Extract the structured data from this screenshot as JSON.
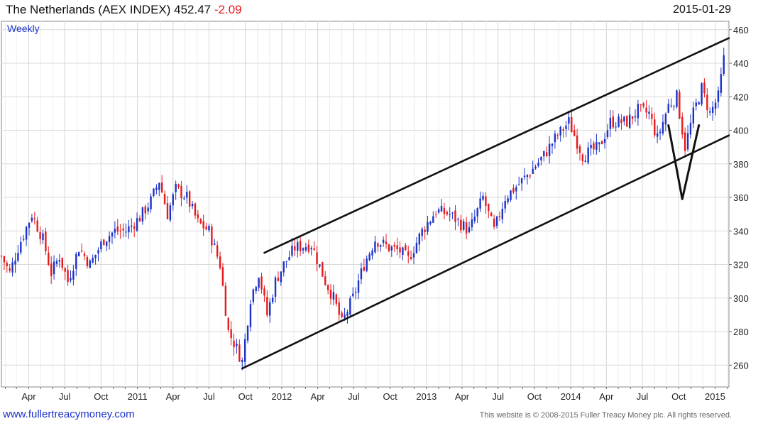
{
  "header": {
    "title": "The Netherlands (AEX INDEX) 452.47",
    "change": "-2.09",
    "date": "2015-01-29"
  },
  "footer": {
    "site": "www.fullertreacymoney.com",
    "copyright": "This website is © 2008-2015 Fuller Treacy Money plc. All rights reserved."
  },
  "colors": {
    "up": "#1c33c9",
    "down": "#e8191c",
    "grid": "#d9d9d9",
    "trend": "#111111"
  },
  "chart_data": {
    "type": "candlestick",
    "interval_label": "Weekly",
    "y_ticks": [
      260,
      280,
      300,
      320,
      340,
      360,
      380,
      400,
      420,
      440,
      460
    ],
    "ylim": [
      247,
      465
    ],
    "x_ticks": [
      "Apr",
      "Jul",
      "Oct",
      "2011",
      "Apr",
      "Jul",
      "Oct",
      "2012",
      "Apr",
      "Jul",
      "Oct",
      "2013",
      "Apr",
      "Jul",
      "Oct",
      "2014",
      "Apr",
      "Jul",
      "Oct",
      "2015"
    ],
    "xlim": [
      "2010-01-22",
      "2015-02-05"
    ],
    "close_path": [
      [
        "2010-01-22",
        325
      ],
      [
        "2010-02-12",
        315
      ],
      [
        "2010-03-05",
        330
      ],
      [
        "2010-04-09",
        350
      ],
      [
        "2010-05-07",
        335
      ],
      [
        "2010-05-28",
        315
      ],
      [
        "2010-06-18",
        325
      ],
      [
        "2010-07-09",
        310
      ],
      [
        "2010-08-06",
        330
      ],
      [
        "2010-09-03",
        320
      ],
      [
        "2010-10-08",
        335
      ],
      [
        "2010-11-05",
        340
      ],
      [
        "2010-12-03",
        340
      ],
      [
        "2011-01-07",
        348
      ],
      [
        "2011-02-04",
        358
      ],
      [
        "2011-02-25",
        370
      ],
      [
        "2011-03-18",
        350
      ],
      [
        "2011-04-08",
        365
      ],
      [
        "2011-05-06",
        360
      ],
      [
        "2011-06-03",
        345
      ],
      [
        "2011-07-01",
        340
      ],
      [
        "2011-07-29",
        320
      ],
      [
        "2011-08-19",
        280
      ],
      [
        "2011-09-09",
        270
      ],
      [
        "2011-09-23",
        262
      ],
      [
        "2011-10-14",
        300
      ],
      [
        "2011-11-04",
        315
      ],
      [
        "2011-11-25",
        290
      ],
      [
        "2011-12-16",
        310
      ],
      [
        "2012-01-06",
        320
      ],
      [
        "2012-02-03",
        330
      ],
      [
        "2012-03-16",
        332
      ],
      [
        "2012-04-20",
        310
      ],
      [
        "2012-05-11",
        300
      ],
      [
        "2012-06-01",
        285
      ],
      [
        "2012-06-29",
        300
      ],
      [
        "2012-07-27",
        320
      ],
      [
        "2012-08-24",
        335
      ],
      [
        "2012-09-28",
        330
      ],
      [
        "2012-10-26",
        328
      ],
      [
        "2012-11-16",
        323
      ],
      [
        "2012-12-21",
        340
      ],
      [
        "2013-01-25",
        352
      ],
      [
        "2013-03-01",
        350
      ],
      [
        "2013-04-19",
        340
      ],
      [
        "2013-05-24",
        360
      ],
      [
        "2013-06-21",
        340
      ],
      [
        "2013-07-19",
        360
      ],
      [
        "2013-08-23",
        368
      ],
      [
        "2013-09-20",
        375
      ],
      [
        "2013-10-25",
        385
      ],
      [
        "2013-11-22",
        395
      ],
      [
        "2013-12-27",
        405
      ],
      [
        "2014-01-31",
        385
      ],
      [
        "2014-03-14",
        390
      ],
      [
        "2014-04-11",
        405
      ],
      [
        "2014-05-23",
        405
      ],
      [
        "2014-06-20",
        412
      ],
      [
        "2014-07-18",
        410
      ],
      [
        "2014-08-08",
        395
      ],
      [
        "2014-09-05",
        415
      ],
      [
        "2014-09-26",
        420
      ],
      [
        "2014-10-17",
        390
      ],
      [
        "2014-11-07",
        410
      ],
      [
        "2014-11-28",
        425
      ],
      [
        "2014-12-19",
        410
      ],
      [
        "2015-01-09",
        420
      ],
      [
        "2015-01-29",
        452
      ]
    ],
    "trendlines": [
      [
        [
          "2011-11-18",
          327
        ],
        [
          "2015-02-05",
          455
        ]
      ],
      [
        [
          "2011-09-23",
          258
        ],
        [
          "2015-02-05",
          397
        ]
      ]
    ],
    "v_bottom_annotation": [
      [
        "2014-09-05",
        403
      ],
      [
        "2014-10-10",
        359
      ],
      [
        "2014-11-21",
        403
      ]
    ]
  }
}
